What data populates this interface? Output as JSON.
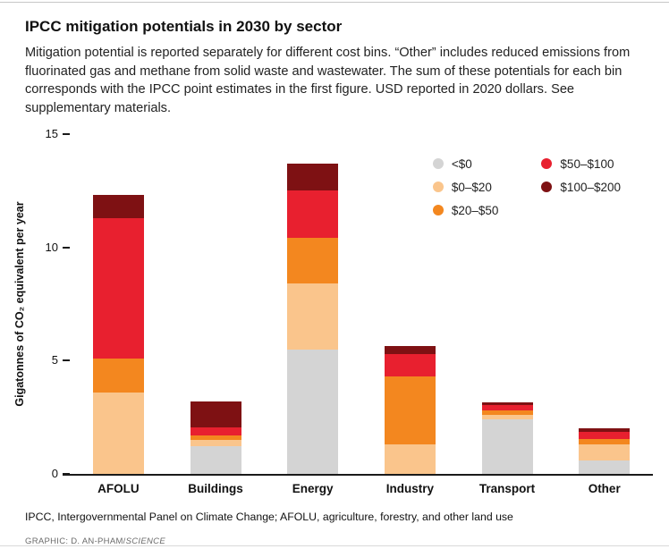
{
  "page": {
    "title": "IPCC mitigation potentials in 2030 by sector",
    "subtitle": "Mitigation potential is reported separately for different cost bins. “Other” includes reduced emissions from fluorinated gas and methane from solid waste and wastewater. The sum of these potentials for each bin corresponds with the IPCC point estimates in the first figure. USD reported in 2020 dollars. See supplementary materials.",
    "footnote": "IPCC, Intergovernmental Panel on Climate Change; AFOLU, agriculture, forestry, and other land use",
    "credit_prefix": "GRAPHIC: D. AN-PHAM/",
    "credit_source": "SCIENCE"
  },
  "chart_data": {
    "type": "bar",
    "stacked": true,
    "title": "IPCC mitigation potentials in 2030 by sector",
    "categories": [
      "AFOLU",
      "Buildings",
      "Energy",
      "Industry",
      "Transport",
      "Other"
    ],
    "series": [
      {
        "name": "<$0",
        "color": "#d4d4d4",
        "values": [
          0,
          1.2,
          5.5,
          0,
          2.4,
          0.6
        ]
      },
      {
        "name": "$0–$20",
        "color": "#fac58c",
        "values": [
          3.6,
          0.3,
          2.9,
          1.3,
          0.2,
          0.7
        ]
      },
      {
        "name": "$20–$50",
        "color": "#f3871f",
        "values": [
          1.5,
          0.2,
          2.0,
          3.0,
          0.2,
          0.25
        ]
      },
      {
        "name": "$50–$100",
        "color": "#e8202f",
        "values": [
          6.2,
          0.35,
          2.1,
          1.0,
          0.25,
          0.3
        ]
      },
      {
        "name": "$100–$200",
        "color": "#7e1113",
        "values": [
          1.0,
          1.15,
          1.2,
          0.35,
          0.1,
          0.15
        ]
      }
    ],
    "xlabel": "",
    "ylabel": "Gigatonnes of CO₂ equivalent per year",
    "ylim": [
      0,
      15
    ],
    "yticks": [
      0,
      5,
      10,
      15
    ],
    "grid": false,
    "legend_position": "top-right"
  }
}
